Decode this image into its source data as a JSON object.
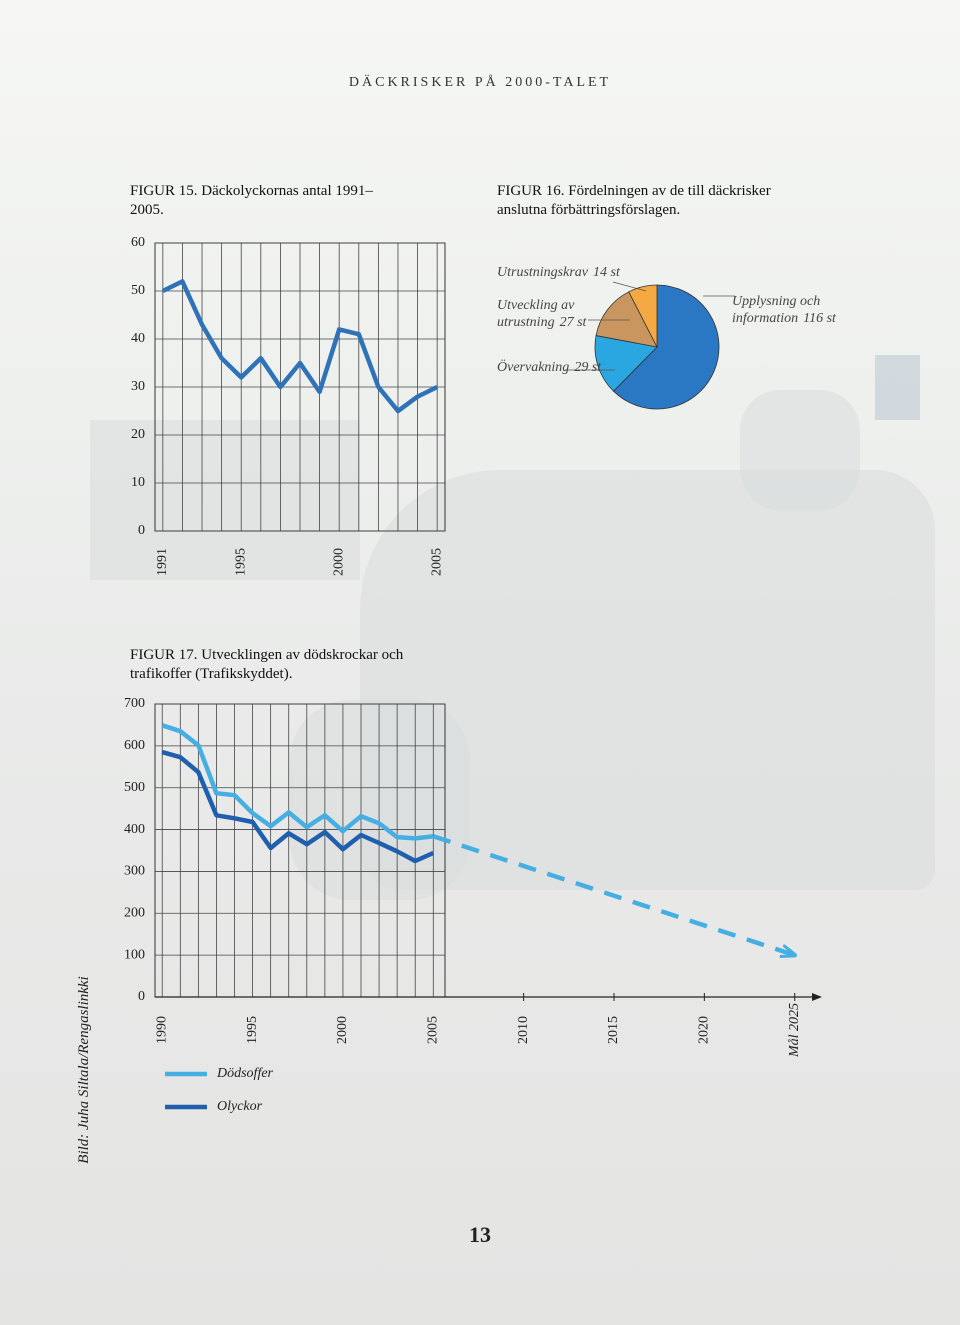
{
  "header": "DÄCKRISKER PÅ 2000-TALET",
  "credit": "Bild: Juha Siltala/Rengaslinkki",
  "page_number": 13,
  "chart_data": [
    {
      "type": "line",
      "title": "FIGUR 15. Däckolyckornas antal 1991–2005.",
      "x": [
        1991,
        1992,
        1993,
        1994,
        1995,
        1996,
        1997,
        1998,
        1999,
        2000,
        2001,
        2002,
        2003,
        2004,
        2005
      ],
      "series": [
        {
          "color": "#2f72b8",
          "values": [
            50,
            52,
            43,
            36,
            32,
            36,
            30,
            35,
            29,
            42,
            41,
            30,
            25,
            28,
            30
          ]
        }
      ],
      "xlim": [
        1990.6,
        2005.4
      ],
      "xticks": [
        1991,
        1995,
        2000,
        2005
      ],
      "ylim": [
        0,
        60
      ],
      "yticks": [
        0,
        10,
        20,
        30,
        40,
        50,
        60
      ],
      "grid": true
    },
    {
      "type": "pie",
      "title": "FIGUR 16. Fördelningen av de till däckrisker anslutna förbättringsförslagen.",
      "categories": [
        "Upplysning och information",
        "Övervakning",
        "Utveckling av utrustning",
        "Utrustningskrav"
      ],
      "values": [
        116,
        29,
        27,
        14
      ],
      "value_labels": [
        "116 st",
        "29 st",
        "27 st",
        "14 st"
      ],
      "colors": [
        "#2a77c3",
        "#2aa7e0",
        "#c99660",
        "#f4a943"
      ]
    },
    {
      "type": "line",
      "title": "FIGUR 17. Utvecklingen av dödskrockar och trafikoffer (Trafikskyddet).",
      "x": [
        1990,
        1991,
        1992,
        1993,
        1994,
        1995,
        1996,
        1997,
        1998,
        1999,
        2000,
        2001,
        2002,
        2003,
        2004,
        2005,
        2025
      ],
      "series": [
        {
          "name": "Dödsoffer",
          "color": "#45aee3",
          "values": [
            649,
            635,
            601,
            487,
            482,
            439,
            408,
            441,
            406,
            434,
            396,
            432,
            415,
            382,
            379,
            384,
            100
          ]
        },
        {
          "name": "Olyckor",
          "color": "#1f5fae",
          "values": [
            585,
            573,
            537,
            434,
            427,
            418,
            356,
            391,
            365,
            394,
            353,
            387,
            368,
            348,
            325,
            344,
            null
          ]
        }
      ],
      "xlim": [
        1989.6,
        2026.4
      ],
      "xticks": [
        1990,
        1995,
        2000,
        2005,
        2010,
        2015,
        2020,
        {
          "value": 2025,
          "label": "Mål 2025"
        }
      ],
      "ylim": [
        0,
        700
      ],
      "yticks": [
        0,
        100,
        200,
        300,
        400,
        500,
        600,
        700
      ],
      "grid": true
    }
  ]
}
